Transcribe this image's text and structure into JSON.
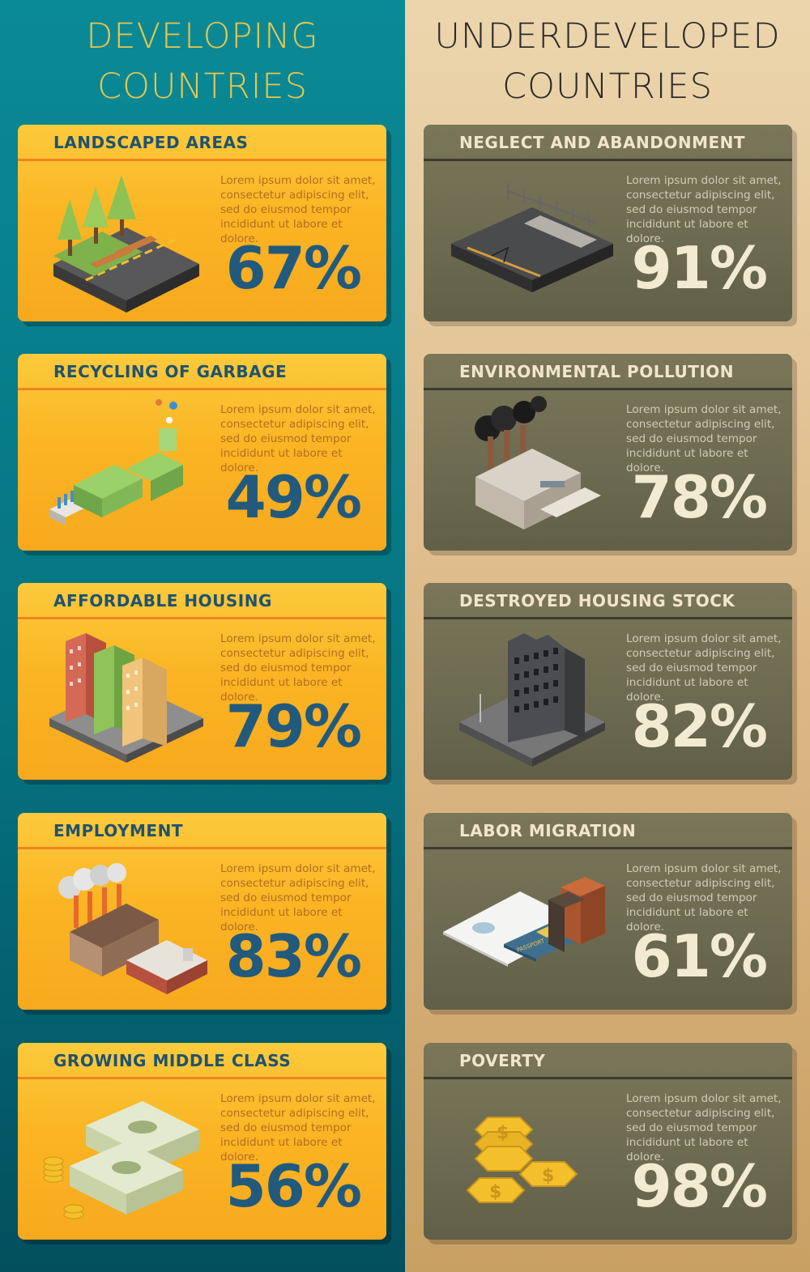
{
  "developing": {
    "heading_line1": "DEVELOPING",
    "heading_line2": "COUNTRIES",
    "cards": [
      {
        "title": "LANDSCAPED AREAS",
        "text": "Lorem ipsum dolor sit amet, consectetur adipiscing elit, sed do eiusmod tempor incididunt ut labore et dolore.",
        "value": "67%",
        "icon": "park-icon"
      },
      {
        "title": "RECYCLING OF GARBAGE",
        "text": "Lorem ipsum dolor sit amet, consectetur adipiscing elit, sed do eiusmod tempor incididunt ut labore et dolore.",
        "value": "49%",
        "icon": "recycling-plant-icon"
      },
      {
        "title": "AFFORDABLE HOUSING",
        "text": "Lorem ipsum dolor sit amet, consectetur adipiscing elit, sed do eiusmod tempor incididunt ut labore et dolore.",
        "value": "79%",
        "icon": "apartment-buildings-icon"
      },
      {
        "title": "EMPLOYMENT",
        "text": "Lorem ipsum dolor sit amet, consectetur adipiscing elit, sed do eiusmod tempor incididunt ut labore et dolore.",
        "value": "83%",
        "icon": "factory-icon"
      },
      {
        "title": "GROWING MIDDLE CLASS",
        "text": "Lorem ipsum dolor sit amet, consectetur adipiscing elit, sed do eiusmod tempor incididunt ut labore et dolore.",
        "value": "56%",
        "icon": "money-stacks-icon"
      }
    ]
  },
  "underdeveloped": {
    "heading_line1": "UNDERDEVELOPED",
    "heading_line2": "COUNTRIES",
    "cards": [
      {
        "title": "NEGLECT AND ABANDONMENT",
        "text": "Lorem ipsum dolor sit amet, consectetur adipiscing elit, sed do eiusmod tempor incididunt ut labore et dolore.",
        "value": "91%",
        "icon": "abandoned-road-icon"
      },
      {
        "title": "ENVIRONMENTAL POLLUTION",
        "text": "Lorem ipsum dolor sit amet, consectetur adipiscing elit, sed do eiusmod tempor incididunt ut labore et dolore.",
        "value": "78%",
        "icon": "polluting-factory-icon"
      },
      {
        "title": "DESTROYED HOUSING STOCK",
        "text": "Lorem ipsum dolor sit amet, consectetur adipiscing elit, sed do eiusmod tempor incididunt ut labore et dolore.",
        "value": "82%",
        "icon": "ruined-building-icon"
      },
      {
        "title": "LABOR MIGRATION",
        "text": "Lorem ipsum dolor sit amet, consectetur adipiscing elit, sed do eiusmod tempor incididunt ut labore et dolore.",
        "value": "61%",
        "icon": "passport-luggage-icon"
      },
      {
        "title": "POVERTY",
        "text": "Lorem ipsum dolor sit amet, consectetur adipiscing elit, sed do eiusmod tempor incididunt ut labore et dolore.",
        "value": "98%",
        "icon": "coins-icon"
      }
    ]
  },
  "passport_label": "PASSPORT",
  "colors": {
    "left_bg": "#0a8a96",
    "right_bg": "#ecd5ad",
    "left_card": "#fbb524",
    "right_card": "#6c6a50",
    "left_value": "#215a7d",
    "right_value": "#f3ead2"
  }
}
